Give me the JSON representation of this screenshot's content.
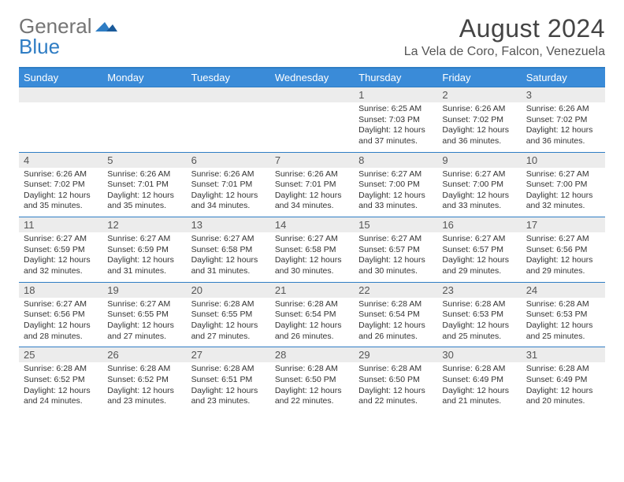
{
  "logo": {
    "word1": "General",
    "word2": "Blue"
  },
  "title": "August 2024",
  "location": "La Vela de Coro, Falcon, Venezuela",
  "colors": {
    "header_bg": "#3a8bd8",
    "header_text": "#ffffff",
    "border": "#2f7dc4",
    "daynum_bg": "#ececec",
    "text": "#333333",
    "logo_gray": "#757575",
    "logo_blue": "#2f7dc4"
  },
  "day_names": [
    "Sunday",
    "Monday",
    "Tuesday",
    "Wednesday",
    "Thursday",
    "Friday",
    "Saturday"
  ],
  "weeks": [
    [
      {
        "n": "",
        "sr": "",
        "ss": "",
        "dl": ""
      },
      {
        "n": "",
        "sr": "",
        "ss": "",
        "dl": ""
      },
      {
        "n": "",
        "sr": "",
        "ss": "",
        "dl": ""
      },
      {
        "n": "",
        "sr": "",
        "ss": "",
        "dl": ""
      },
      {
        "n": "1",
        "sr": "6:25 AM",
        "ss": "7:03 PM",
        "dl": "12 hours and 37 minutes."
      },
      {
        "n": "2",
        "sr": "6:26 AM",
        "ss": "7:02 PM",
        "dl": "12 hours and 36 minutes."
      },
      {
        "n": "3",
        "sr": "6:26 AM",
        "ss": "7:02 PM",
        "dl": "12 hours and 36 minutes."
      }
    ],
    [
      {
        "n": "4",
        "sr": "6:26 AM",
        "ss": "7:02 PM",
        "dl": "12 hours and 35 minutes."
      },
      {
        "n": "5",
        "sr": "6:26 AM",
        "ss": "7:01 PM",
        "dl": "12 hours and 35 minutes."
      },
      {
        "n": "6",
        "sr": "6:26 AM",
        "ss": "7:01 PM",
        "dl": "12 hours and 34 minutes."
      },
      {
        "n": "7",
        "sr": "6:26 AM",
        "ss": "7:01 PM",
        "dl": "12 hours and 34 minutes."
      },
      {
        "n": "8",
        "sr": "6:27 AM",
        "ss": "7:00 PM",
        "dl": "12 hours and 33 minutes."
      },
      {
        "n": "9",
        "sr": "6:27 AM",
        "ss": "7:00 PM",
        "dl": "12 hours and 33 minutes."
      },
      {
        "n": "10",
        "sr": "6:27 AM",
        "ss": "7:00 PM",
        "dl": "12 hours and 32 minutes."
      }
    ],
    [
      {
        "n": "11",
        "sr": "6:27 AM",
        "ss": "6:59 PM",
        "dl": "12 hours and 32 minutes."
      },
      {
        "n": "12",
        "sr": "6:27 AM",
        "ss": "6:59 PM",
        "dl": "12 hours and 31 minutes."
      },
      {
        "n": "13",
        "sr": "6:27 AM",
        "ss": "6:58 PM",
        "dl": "12 hours and 31 minutes."
      },
      {
        "n": "14",
        "sr": "6:27 AM",
        "ss": "6:58 PM",
        "dl": "12 hours and 30 minutes."
      },
      {
        "n": "15",
        "sr": "6:27 AM",
        "ss": "6:57 PM",
        "dl": "12 hours and 30 minutes."
      },
      {
        "n": "16",
        "sr": "6:27 AM",
        "ss": "6:57 PM",
        "dl": "12 hours and 29 minutes."
      },
      {
        "n": "17",
        "sr": "6:27 AM",
        "ss": "6:56 PM",
        "dl": "12 hours and 29 minutes."
      }
    ],
    [
      {
        "n": "18",
        "sr": "6:27 AM",
        "ss": "6:56 PM",
        "dl": "12 hours and 28 minutes."
      },
      {
        "n": "19",
        "sr": "6:27 AM",
        "ss": "6:55 PM",
        "dl": "12 hours and 27 minutes."
      },
      {
        "n": "20",
        "sr": "6:28 AM",
        "ss": "6:55 PM",
        "dl": "12 hours and 27 minutes."
      },
      {
        "n": "21",
        "sr": "6:28 AM",
        "ss": "6:54 PM",
        "dl": "12 hours and 26 minutes."
      },
      {
        "n": "22",
        "sr": "6:28 AM",
        "ss": "6:54 PM",
        "dl": "12 hours and 26 minutes."
      },
      {
        "n": "23",
        "sr": "6:28 AM",
        "ss": "6:53 PM",
        "dl": "12 hours and 25 minutes."
      },
      {
        "n": "24",
        "sr": "6:28 AM",
        "ss": "6:53 PM",
        "dl": "12 hours and 25 minutes."
      }
    ],
    [
      {
        "n": "25",
        "sr": "6:28 AM",
        "ss": "6:52 PM",
        "dl": "12 hours and 24 minutes."
      },
      {
        "n": "26",
        "sr": "6:28 AM",
        "ss": "6:52 PM",
        "dl": "12 hours and 23 minutes."
      },
      {
        "n": "27",
        "sr": "6:28 AM",
        "ss": "6:51 PM",
        "dl": "12 hours and 23 minutes."
      },
      {
        "n": "28",
        "sr": "6:28 AM",
        "ss": "6:50 PM",
        "dl": "12 hours and 22 minutes."
      },
      {
        "n": "29",
        "sr": "6:28 AM",
        "ss": "6:50 PM",
        "dl": "12 hours and 22 minutes."
      },
      {
        "n": "30",
        "sr": "6:28 AM",
        "ss": "6:49 PM",
        "dl": "12 hours and 21 minutes."
      },
      {
        "n": "31",
        "sr": "6:28 AM",
        "ss": "6:49 PM",
        "dl": "12 hours and 20 minutes."
      }
    ]
  ],
  "labels": {
    "sunrise": "Sunrise:",
    "sunset": "Sunset:",
    "daylight": "Daylight:"
  }
}
